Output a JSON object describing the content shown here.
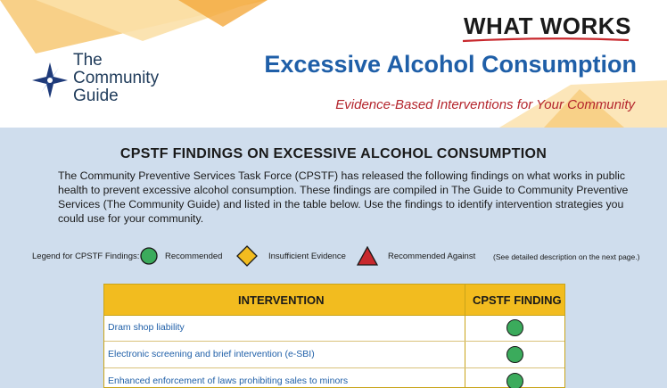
{
  "header": {
    "org_line1": "The",
    "org_line2": "Community",
    "org_line3": "Guide",
    "what_works": "WHAT WORKS",
    "title": "Excessive Alcohol Consumption",
    "subtitle": "Evidence-Based Interventions for Your Community"
  },
  "section": {
    "title": "CPSTF FINDINGS ON EXCESSIVE ALCOHOL CONSUMPTION",
    "intro": "The Community Preventive Services Task Force (CPSTF) has released the following findings on what works in public health to prevent excessive alcohol consumption. These findings are compiled in The Guide to Community Preventive Services (The Community Guide) and listed in the table below. Use the findings to identify intervention strategies you could use for your community."
  },
  "legend": {
    "label": "Legend for CPSTF Findings:",
    "recommended": "Recommended",
    "insufficient": "Insufficient Evidence",
    "against": "Recommended Against",
    "note": "(See detailed description on the next page.)"
  },
  "table": {
    "col_intervention": "INTERVENTION",
    "col_finding": "CPSTF FINDING",
    "rows": [
      {
        "intervention": "Dram shop liability",
        "finding": "Recommended"
      },
      {
        "intervention": "Electronic screening and brief intervention (e-SBI)",
        "finding": "Recommended"
      },
      {
        "intervention": "Enhanced enforcement of laws prohibiting sales to minors",
        "finding": "Recommended"
      }
    ]
  },
  "colors": {
    "title_blue": "#1f5fa8",
    "subtitle_red": "#b4252c",
    "table_header_gold": "#f2bc1f",
    "recommended_green": "#3bab5c",
    "insufficient_yellow": "#f2bc1f",
    "against_red": "#c8282d"
  }
}
